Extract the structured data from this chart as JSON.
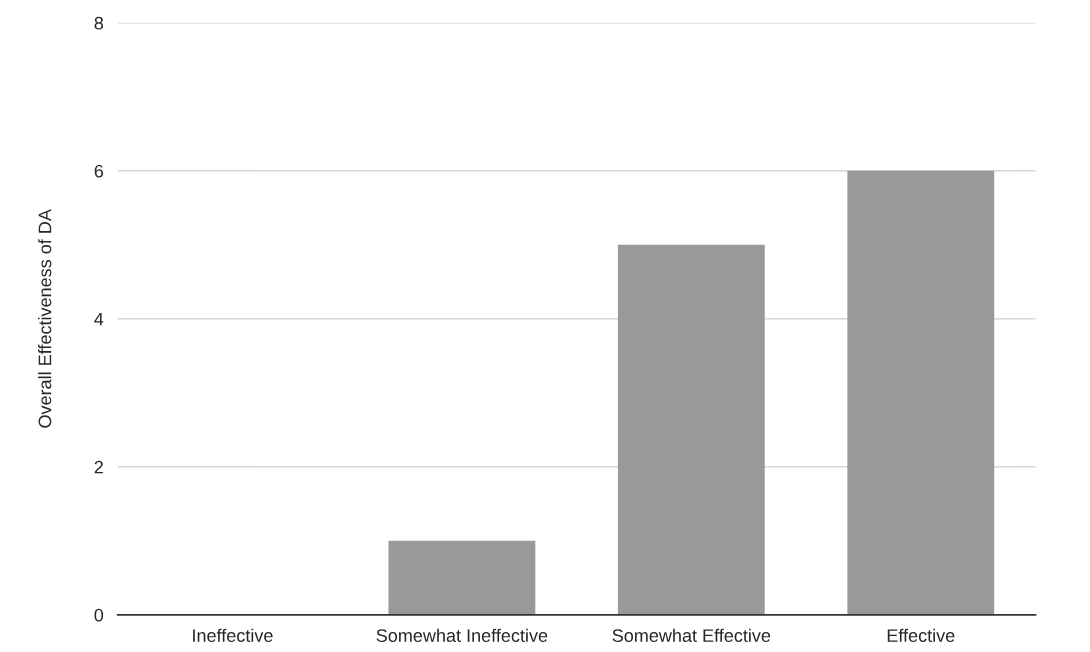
{
  "chart_data": {
    "type": "bar",
    "ylabel": "Overall Effectiveness of DA",
    "categories": [
      "Ineffective",
      "Somewhat Ineffective",
      "Somewhat Effective",
      "Effective"
    ],
    "values": [
      0,
      1,
      5,
      6
    ],
    "color": "#999999",
    "ylim": [
      0,
      8
    ],
    "yticks": [
      0,
      2,
      4,
      6,
      8
    ],
    "grid": "y"
  }
}
